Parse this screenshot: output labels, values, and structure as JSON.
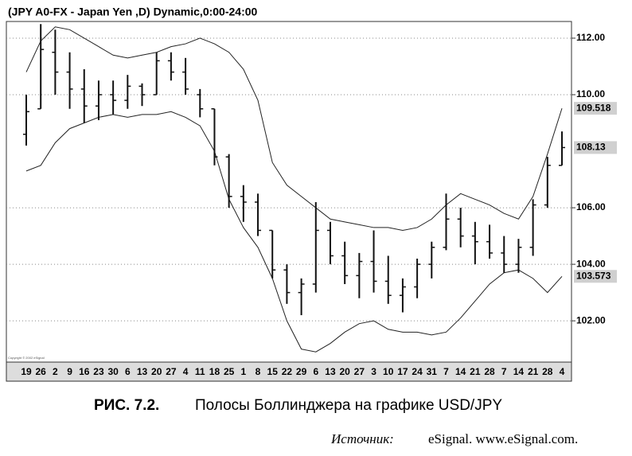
{
  "chart_data": {
    "type": "ohlc",
    "title": "(JPY A0-FX - Japan Yen  ,D) Dynamic,0:00-24:00",
    "copyright": "Copyright © 2002 eSignal",
    "caption_number": "РИС. 7.2.",
    "caption": "Полосы Боллинджера на графике USD/JPY",
    "source_label": "Источник:",
    "source": "eSignal. www.eSignal.com.",
    "categories": [
      "19",
      "26",
      "2",
      "9",
      "16",
      "23",
      "30",
      "6",
      "13",
      "20",
      "27",
      "4",
      "11",
      "18",
      "25",
      "1",
      "8",
      "15",
      "22",
      "29",
      "6",
      "13",
      "20",
      "27",
      "3",
      "10",
      "17",
      "24",
      "31",
      "7",
      "14",
      "21",
      "28",
      "7",
      "14",
      "21",
      "28",
      "4"
    ],
    "open": [
      108.6,
      109.5,
      111.5,
      110.8,
      110.2,
      109.6,
      110.0,
      109.8,
      110.3,
      110.0,
      111.2,
      110.8,
      110.0,
      109.5,
      107.8,
      106.4,
      106.2,
      105.2,
      103.8,
      103.0,
      103.3,
      105.2,
      104.3,
      103.6,
      104.1,
      103.4,
      102.9,
      103.2,
      104.0,
      104.6,
      105.6,
      105.0,
      104.8,
      104.4,
      104.0,
      104.6,
      106.1,
      107.5
    ],
    "high": [
      110.0,
      112.5,
      112.3,
      111.5,
      110.9,
      110.5,
      110.5,
      110.7,
      110.4,
      111.5,
      111.5,
      111.3,
      110.2,
      109.5,
      107.9,
      106.8,
      106.5,
      105.2,
      104.0,
      103.5,
      106.2,
      105.5,
      104.8,
      104.4,
      105.2,
      104.3,
      103.5,
      104.2,
      104.8,
      106.5,
      106.0,
      105.5,
      105.4,
      105.0,
      104.9,
      106.3,
      107.8,
      108.7
    ],
    "low": [
      108.2,
      109.5,
      110.0,
      109.5,
      109.0,
      109.1,
      109.3,
      109.5,
      109.6,
      110.0,
      110.5,
      110.0,
      109.2,
      107.5,
      106.0,
      105.5,
      105.0,
      103.5,
      102.6,
      102.2,
      103.0,
      104.0,
      103.3,
      102.8,
      103.0,
      102.6,
      102.3,
      102.8,
      103.5,
      104.5,
      104.6,
      104.0,
      104.2,
      103.7,
      103.7,
      104.3,
      106.0,
      107.5
    ],
    "close": [
      109.4,
      111.6,
      110.8,
      110.2,
      109.6,
      110.0,
      109.8,
      110.3,
      110.0,
      111.2,
      110.8,
      110.2,
      109.5,
      107.8,
      106.4,
      106.2,
      105.2,
      103.8,
      103.0,
      103.3,
      105.2,
      104.3,
      103.6,
      104.1,
      103.4,
      102.9,
      103.2,
      104.0,
      104.6,
      105.6,
      105.0,
      104.8,
      104.4,
      104.0,
      104.6,
      106.1,
      107.5,
      108.13
    ],
    "upper_band": [
      110.8,
      111.9,
      112.4,
      112.3,
      112.0,
      111.7,
      111.4,
      111.3,
      111.4,
      111.5,
      111.7,
      111.8,
      112.0,
      111.8,
      111.5,
      110.9,
      109.8,
      107.6,
      106.8,
      106.4,
      106.0,
      105.6,
      105.5,
      105.4,
      105.3,
      105.3,
      105.2,
      105.3,
      105.6,
      106.1,
      106.5,
      106.3,
      106.1,
      105.8,
      105.6,
      106.4,
      107.9,
      109.518
    ],
    "lower_band": [
      107.3,
      107.5,
      108.3,
      108.8,
      109.0,
      109.2,
      109.3,
      109.2,
      109.3,
      109.3,
      109.4,
      109.2,
      108.9,
      108.0,
      106.3,
      105.3,
      104.6,
      103.5,
      102.0,
      101.0,
      100.9,
      101.2,
      101.6,
      101.9,
      102.0,
      101.7,
      101.6,
      101.6,
      101.5,
      101.6,
      102.1,
      102.7,
      103.3,
      103.7,
      103.8,
      103.5,
      103.0,
      103.573
    ],
    "color": "#111111",
    "band_color": "#222222",
    "ylim": [
      100.54,
      112.59
    ],
    "yticks": [
      {
        "value": 102,
        "label": "102.00"
      },
      {
        "value": 104,
        "label": "104.00"
      },
      {
        "value": 106,
        "label": "106.00"
      },
      {
        "value": 110,
        "label": "110.00"
      },
      {
        "value": 112,
        "label": "112.00"
      }
    ],
    "grid": true
  }
}
